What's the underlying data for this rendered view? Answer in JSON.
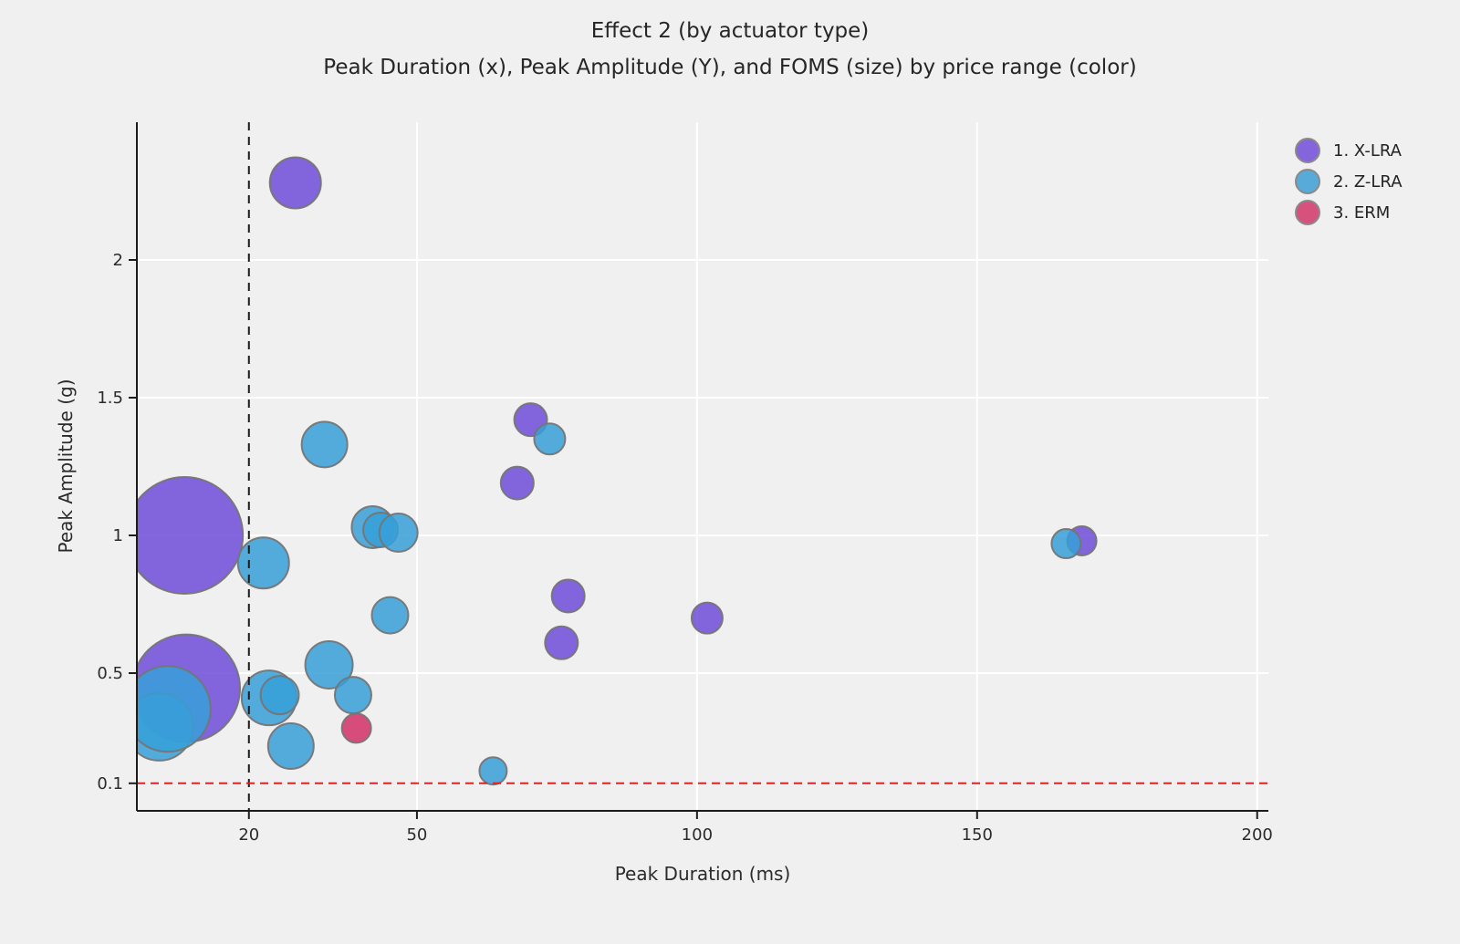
{
  "page": {
    "background": "#f0f0f0"
  },
  "chart_data": {
    "type": "scatter",
    "variant": "bubble",
    "title": "Effect 2 (by actuator type)",
    "subtitle": "Peak Duration (x), Peak Amplitude (Y), and FOMS (size) by price range (color)",
    "xlabel": "Peak Duration (ms)",
    "ylabel": "Peak Amplitude (g)",
    "xlim": [
      0,
      202
    ],
    "ylim": [
      0,
      2.5
    ],
    "x_ticks": {
      "values": [
        20,
        50,
        100,
        150,
        200
      ],
      "labels": [
        "20",
        "50",
        "100",
        "150",
        "200"
      ]
    },
    "y_ticks": {
      "values": [
        0.1,
        0.5,
        1,
        1.5,
        2
      ],
      "labels": [
        "0.1",
        "0.5",
        "1",
        "1.5",
        "2"
      ]
    },
    "x_gridlines": [
      50,
      100,
      150,
      200
    ],
    "y_gridlines": [
      0.5,
      1,
      1.5,
      2
    ],
    "grid_color": "#ffffff",
    "axis_color": "#1c1c1c",
    "tick_label_color": "#2b2b2b",
    "vline": {
      "x": 20,
      "color": "#1a1a1a",
      "dash": "9 7",
      "label": "x-threshold-20ms"
    },
    "hline": {
      "y": 0.1,
      "color": "#dd2222",
      "dash": "9 6",
      "label": "y-threshold-0.1g"
    },
    "bubble_stroke": "#757575",
    "fill_opacity": 0.85,
    "legend": {
      "position": "top-right",
      "items": [
        {
          "label": "1. X-LRA",
          "color": "#8465DB"
        },
        {
          "label": "2. Z-LRA",
          "color": "#58ABD8"
        },
        {
          "label": "3. ERM",
          "color": "#D6517C"
        }
      ]
    },
    "series": [
      {
        "name": "1. X-LRA",
        "fill": "#6F4BD8",
        "points": [
          {
            "x": 28.3,
            "y": 2.28,
            "r": 28
          },
          {
            "x": 8.5,
            "y": 1.0,
            "r": 64
          },
          {
            "x": 70.3,
            "y": 1.42,
            "r": 18
          },
          {
            "x": 67.9,
            "y": 1.19,
            "r": 18
          },
          {
            "x": 8.8,
            "y": 0.445,
            "r": 59
          },
          {
            "x": 77.0,
            "y": 0.78,
            "r": 18
          },
          {
            "x": 75.8,
            "y": 0.61,
            "r": 18
          },
          {
            "x": 101.8,
            "y": 0.7,
            "r": 17
          },
          {
            "x": 168.7,
            "y": 0.98,
            "r": 16
          }
        ]
      },
      {
        "name": "2. Z-LRA",
        "fill": "#379FD8",
        "points": [
          {
            "x": 4.0,
            "y": 0.305,
            "r": 37
          },
          {
            "x": 5.5,
            "y": 0.37,
            "r": 47
          },
          {
            "x": 22.6,
            "y": 0.9,
            "r": 28
          },
          {
            "x": 33.5,
            "y": 1.33,
            "r": 25
          },
          {
            "x": 73.7,
            "y": 1.35,
            "r": 17
          },
          {
            "x": 42.1,
            "y": 1.03,
            "r": 23
          },
          {
            "x": 43.5,
            "y": 1.02,
            "r": 19
          },
          {
            "x": 46.7,
            "y": 1.01,
            "r": 21
          },
          {
            "x": 45.2,
            "y": 0.71,
            "r": 20
          },
          {
            "x": 34.3,
            "y": 0.53,
            "r": 26
          },
          {
            "x": 23.6,
            "y": 0.41,
            "r": 30
          },
          {
            "x": 25.5,
            "y": 0.42,
            "r": 21
          },
          {
            "x": 38.6,
            "y": 0.42,
            "r": 20
          },
          {
            "x": 27.5,
            "y": 0.235,
            "r": 25
          },
          {
            "x": 63.6,
            "y": 0.145,
            "r": 15
          },
          {
            "x": 165.9,
            "y": 0.97,
            "r": 16
          }
        ]
      },
      {
        "name": "3. ERM",
        "fill": "#D13066",
        "points": [
          {
            "x": 39.2,
            "y": 0.3,
            "r": 16
          }
        ]
      }
    ]
  }
}
